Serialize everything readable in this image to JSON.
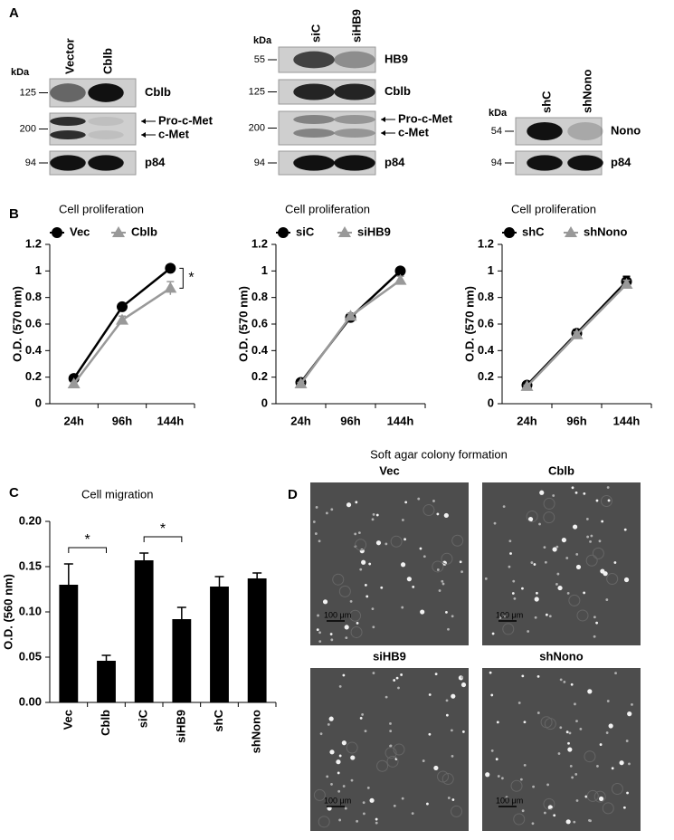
{
  "panel_labels": [
    "A",
    "B",
    "C",
    "D"
  ],
  "blots": [
    {
      "kda_label": "kDa",
      "columns": [
        "Vector",
        "Cblb"
      ],
      "rows": [
        {
          "kda": 125,
          "labels": [
            "Cblb"
          ]
        },
        {
          "kda": 200,
          "labels": [
            "Pro-c-Met",
            "c-Met"
          ]
        },
        {
          "kda": 94,
          "labels": [
            "p84"
          ]
        }
      ]
    },
    {
      "kda_label": "kDa",
      "columns": [
        "siC",
        "siHB9"
      ],
      "rows": [
        {
          "kda": 55,
          "labels": [
            "HB9"
          ]
        },
        {
          "kda": 125,
          "labels": [
            "Cblb"
          ]
        },
        {
          "kda": 200,
          "labels": [
            "Pro-c-Met",
            "c-Met"
          ]
        },
        {
          "kda": 94,
          "labels": [
            "p84"
          ]
        }
      ]
    },
    {
      "kda_label": "kDa",
      "columns": [
        "shC",
        "shNono"
      ],
      "rows": [
        {
          "kda": 54,
          "labels": [
            "Nono"
          ]
        },
        {
          "kda": 94,
          "labels": [
            "p84"
          ]
        }
      ]
    }
  ],
  "chart_data": [
    {
      "type": "line",
      "title": "Cell proliferation",
      "ylabel": "O.D. (570 nm)",
      "categories": [
        "24h",
        "96h",
        "144h"
      ],
      "series": [
        {
          "name": "Vec",
          "color": "#000000",
          "marker": "circle",
          "values": [
            0.19,
            0.73,
            1.02
          ],
          "errors": [
            0.01,
            0.02,
            0.02
          ]
        },
        {
          "name": "Cblb",
          "color": "#999999",
          "marker": "triangle",
          "values": [
            0.15,
            0.63,
            0.87
          ],
          "errors": [
            0.01,
            0.03,
            0.05
          ]
        }
      ],
      "ylim": [
        0,
        1.2
      ],
      "yticks": [
        0,
        0.2,
        0.4,
        0.6,
        0.8,
        1,
        1.2
      ],
      "annotation": "*"
    },
    {
      "type": "line",
      "title": "Cell proliferation",
      "ylabel": "O.D. (570 nm)",
      "categories": [
        "24h",
        "96h",
        "144h"
      ],
      "series": [
        {
          "name": "siC",
          "color": "#000000",
          "marker": "circle",
          "values": [
            0.16,
            0.65,
            1.0
          ],
          "errors": [
            0.01,
            0.02,
            0.02
          ]
        },
        {
          "name": "siHB9",
          "color": "#999999",
          "marker": "triangle",
          "values": [
            0.15,
            0.66,
            0.93
          ],
          "errors": [
            0.01,
            0.02,
            0.03
          ]
        }
      ],
      "ylim": [
        0,
        1.2
      ],
      "yticks": [
        0,
        0.2,
        0.4,
        0.6,
        0.8,
        1,
        1.2
      ]
    },
    {
      "type": "line",
      "title": "Cell proliferation",
      "ylabel": "O.D. (570 nm)",
      "categories": [
        "24h",
        "96h",
        "144h"
      ],
      "series": [
        {
          "name": "shC",
          "color": "#000000",
          "marker": "circle",
          "values": [
            0.14,
            0.53,
            0.92
          ],
          "errors": [
            0.01,
            0.03,
            0.04
          ]
        },
        {
          "name": "shNono",
          "color": "#999999",
          "marker": "triangle",
          "values": [
            0.13,
            0.52,
            0.9
          ],
          "errors": [
            0.01,
            0.02,
            0.03
          ]
        }
      ],
      "ylim": [
        0,
        1.2
      ],
      "yticks": [
        0,
        0.2,
        0.4,
        0.6,
        0.8,
        1,
        1.2
      ]
    },
    {
      "type": "bar",
      "title": "Cell migration",
      "ylabel": "O.D. (560 nm)",
      "categories": [
        "Vec",
        "Cblb",
        "siC",
        "siHB9",
        "shC",
        "shNono"
      ],
      "values": [
        0.13,
        0.046,
        0.157,
        0.092,
        0.128,
        0.137
      ],
      "errors": [
        0.023,
        0.006,
        0.008,
        0.013,
        0.011,
        0.006
      ],
      "color": "#000000",
      "ylim": [
        0,
        0.2
      ],
      "yticks": [
        {
          "value": 0,
          "label": "0.00"
        },
        {
          "value": 0.05,
          "label": "0.05"
        },
        {
          "value": 0.1,
          "label": "0.10"
        },
        {
          "value": 0.15,
          "label": "0.15"
        },
        {
          "value": 0.2,
          "label": "0.20"
        }
      ],
      "annotations": [
        "*",
        "*"
      ]
    }
  ],
  "images": {
    "title": "Soft agar colony formation",
    "panels": [
      {
        "label": "Vec",
        "scale": "100 μm"
      },
      {
        "label": "Cblb",
        "scale": "100 μm"
      },
      {
        "label": "siHB9",
        "scale": "100 μm"
      },
      {
        "label": "shNono",
        "scale": "100 μm"
      }
    ]
  }
}
